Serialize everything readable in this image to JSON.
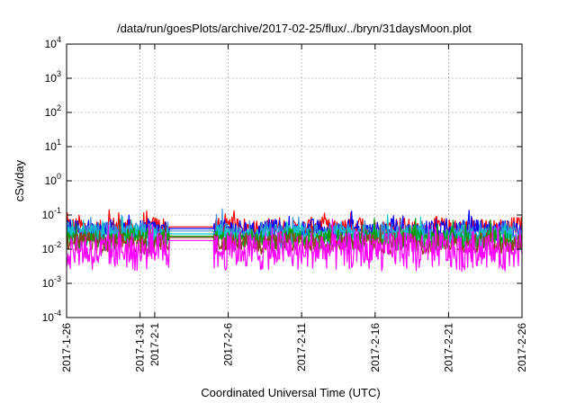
{
  "chart_data": {
    "type": "line",
    "title": "/data/run/goesPlots/archive/2017-02-25/flux/../bryn/31daysMoon.plot",
    "xlabel": "Coordinated Universal Time (UTC)",
    "ylabel": "cSv/day",
    "y_scale": "log",
    "ylim": [
      0.0001,
      10000
    ],
    "y_ticks": [
      {
        "base": "10",
        "exp": "-4",
        "value": 0.0001
      },
      {
        "base": "10",
        "exp": "-3",
        "value": 0.001
      },
      {
        "base": "10",
        "exp": "-2",
        "value": 0.01
      },
      {
        "base": "10",
        "exp": "-1",
        "value": 0.1
      },
      {
        "base": "10",
        "exp": "0",
        "value": 1
      },
      {
        "base": "10",
        "exp": "1",
        "value": 10
      },
      {
        "base": "10",
        "exp": "2",
        "value": 100
      },
      {
        "base": "10",
        "exp": "3",
        "value": 1000
      },
      {
        "base": "10",
        "exp": "4",
        "value": 10000
      }
    ],
    "xlim": [
      "2017-01-26",
      "2017-02-26"
    ],
    "x_ticks": [
      "2017-1-26",
      "2017-1-31",
      "2017-2-1",
      "2017-2-6",
      "2017-2-11",
      "2017-2-16",
      "2017-2-21",
      "2017-2-26"
    ],
    "x_tick_days": [
      0,
      5,
      6,
      11,
      16,
      21,
      26,
      31
    ],
    "grid": true,
    "data_gap": [
      "2017-02-02",
      "2017-02-05"
    ],
    "series": [
      {
        "color": "#ff0000",
        "base": 0.042,
        "gap_level": 0.045
      },
      {
        "color": "#0000ff",
        "base": 0.036,
        "gap_level": 0.04
      },
      {
        "color": "#3a8fd9",
        "base": 0.03,
        "gap_level": 0.034
      },
      {
        "color": "#00c8c8",
        "base": 0.024,
        "gap_level": 0.028
      },
      {
        "color": "#00a000",
        "base": 0.019,
        "gap_level": 0.024
      },
      {
        "color": "#8b4513",
        "base": 0.015,
        "gap_level": 0.022
      },
      {
        "color": "#ff00ff",
        "base": 0.009,
        "gap_level": 0.018
      }
    ]
  }
}
